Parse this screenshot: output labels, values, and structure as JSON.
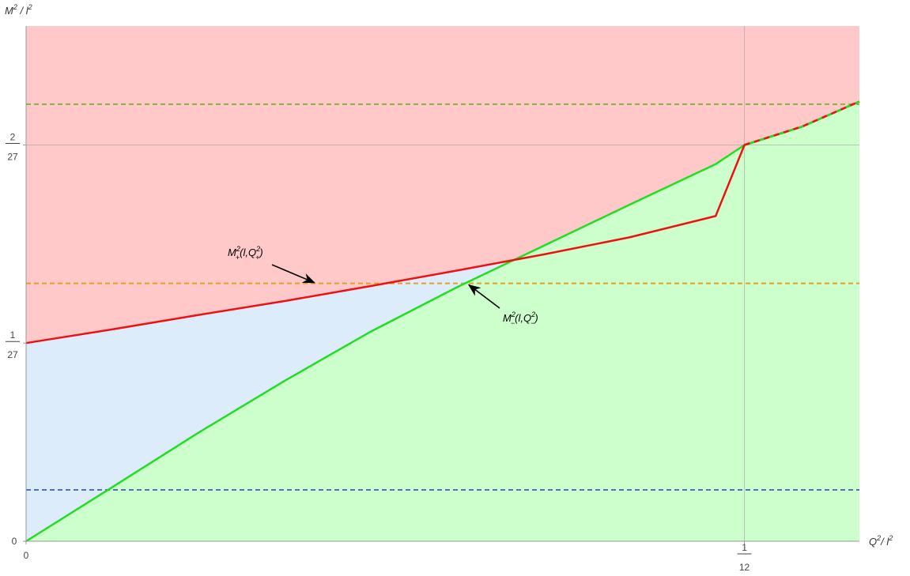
{
  "chart_data": {
    "type": "line",
    "xlim": [
      0,
      0.09667
    ],
    "ylim": [
      0,
      0.0963
    ],
    "x_axis": {
      "label_base": "Q",
      "label_sup": "2",
      "label_div": "/ ",
      "label_base2": "l",
      "label_sup2": "2",
      "ticks": [
        {
          "value": 0,
          "label": "0",
          "num": "",
          "den": ""
        },
        {
          "value": 0.08333,
          "label": "",
          "num": "1",
          "den": "12"
        }
      ]
    },
    "y_axis": {
      "label_base": "M",
      "label_sup": "2",
      "label_div": " / ",
      "label_base2": "l",
      "label_sup2": "2",
      "ticks": [
        {
          "value": 0,
          "label": "0",
          "num": "",
          "den": ""
        },
        {
          "value": 0.037037,
          "label": "",
          "num": "1",
          "den": "27"
        },
        {
          "value": 0.074074,
          "label": "",
          "num": "2",
          "den": "27"
        }
      ]
    },
    "gridlines": {
      "x": [
        0.08333
      ],
      "y": [
        0.074074
      ],
      "color": "#a0a0a0"
    },
    "regions": [
      {
        "name": "upper",
        "color": "#ffc9c9"
      },
      {
        "name": "between",
        "color": "#dcecfb"
      },
      {
        "name": "lower",
        "color": "#ccffcc"
      }
    ],
    "series": [
      {
        "key": "M_plus",
        "color": "#ee1111",
        "x": [
          0,
          0.01,
          0.02,
          0.03,
          0.04,
          0.05,
          0.06,
          0.07,
          0.08,
          0.08333,
          0.09,
          0.09667
        ],
        "y": [
          0.037037,
          0.0396,
          0.0423,
          0.0449,
          0.0477,
          0.0506,
          0.0536,
          0.0568,
          0.0608,
          0.074074,
          0.0775,
          0.0822
        ]
      },
      {
        "key": "M_minus",
        "color": "#22dd22",
        "x": [
          0,
          0.01,
          0.02,
          0.03,
          0.04,
          0.05,
          0.06,
          0.07,
          0.08,
          0.08333,
          0.09,
          0.09667
        ],
        "y": [
          0,
          0.0101,
          0.0203,
          0.03,
          0.0392,
          0.0475,
          0.0552,
          0.0629,
          0.0705,
          0.074074,
          0.0775,
          0.0822
        ]
      }
    ],
    "reference_lines": [
      {
        "y": 0.0096,
        "color": "#4a72c4"
      },
      {
        "y": 0.0482,
        "color": "#e79e20"
      },
      {
        "y": 0.0817,
        "color": "#88b23a"
      }
    ],
    "annotations": [
      {
        "text_base": "M",
        "text_sup": "2",
        "text_sub": "+",
        "text_rest": "(l,",
        "text_q": "Q",
        "text_qsup": "2",
        "text_qsub": "+",
        "text_end": ")",
        "target_x": 0.0337,
        "target_y": 0.0482
      },
      {
        "text_base": "M",
        "text_sup": "2",
        "text_sub": "−",
        "text_rest": "(l,",
        "text_q": "Q",
        "text_qsup": "2",
        "text_qsub": "−",
        "text_end": ")",
        "target_x": 0.0511,
        "target_y": 0.0482
      }
    ]
  }
}
